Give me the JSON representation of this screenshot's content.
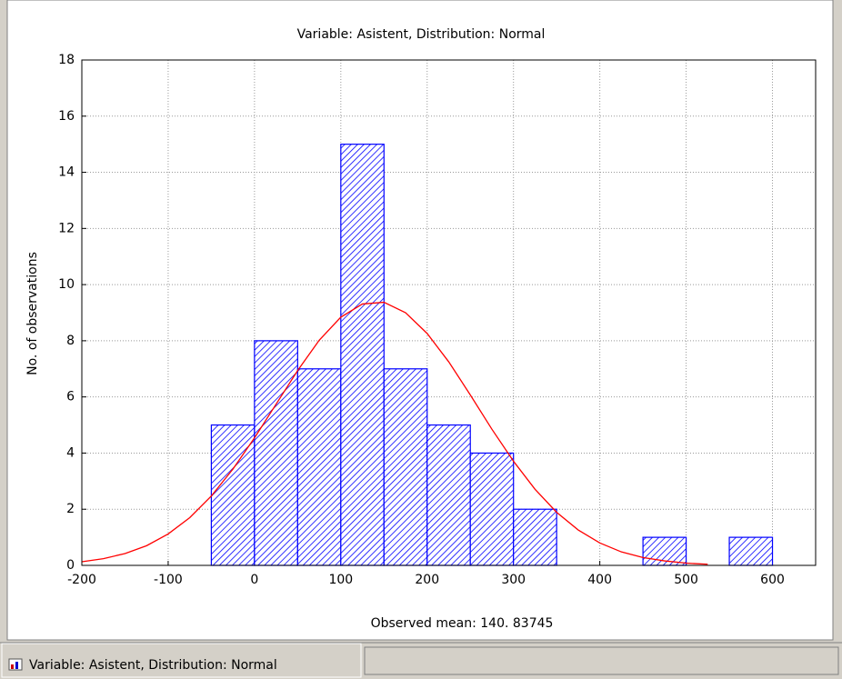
{
  "chart_data": {
    "type": "histogram",
    "title": "Variable: Asistent, Distribution: Normal",
    "xlabel": "Observed mean: 140. 83745",
    "ylabel": "No. of observations",
    "bins": [
      -50,
      0,
      50,
      100,
      150,
      200,
      250,
      300,
      350,
      400,
      450,
      500,
      550,
      600
    ],
    "values": [
      5,
      8,
      7,
      15,
      7,
      5,
      4,
      2,
      0,
      0,
      1,
      0,
      1
    ],
    "color": "#0000ff",
    "curve": {
      "color": "#ff0000",
      "x": [
        -200,
        -175,
        -150,
        -125,
        -100,
        -75,
        -50,
        -25,
        0,
        25,
        50,
        75,
        100,
        125,
        150,
        175,
        200,
        225,
        250,
        275,
        300,
        325,
        350,
        375,
        400,
        425,
        450,
        475,
        500,
        525
      ],
      "values": [
        0.13,
        0.24,
        0.42,
        0.7,
        1.12,
        1.7,
        2.47,
        3.43,
        4.54,
        5.74,
        6.94,
        8.02,
        8.84,
        9.31,
        9.37,
        9.0,
        8.26,
        7.25,
        6.07,
        4.85,
        3.71,
        2.71,
        1.89,
        1.26,
        0.8,
        0.48,
        0.28,
        0.16,
        0.08,
        0.04
      ]
    },
    "xlim": [
      -200,
      650
    ],
    "ylim": [
      0,
      18
    ],
    "xticks": [
      -200,
      -100,
      0,
      100,
      200,
      300,
      400,
      500,
      600
    ],
    "yticks": [
      0,
      2,
      4,
      6,
      8,
      10,
      12,
      14,
      16,
      18
    ],
    "grid": true
  },
  "tab": {
    "label": "Variable: Asistent, Distribution: Normal"
  }
}
